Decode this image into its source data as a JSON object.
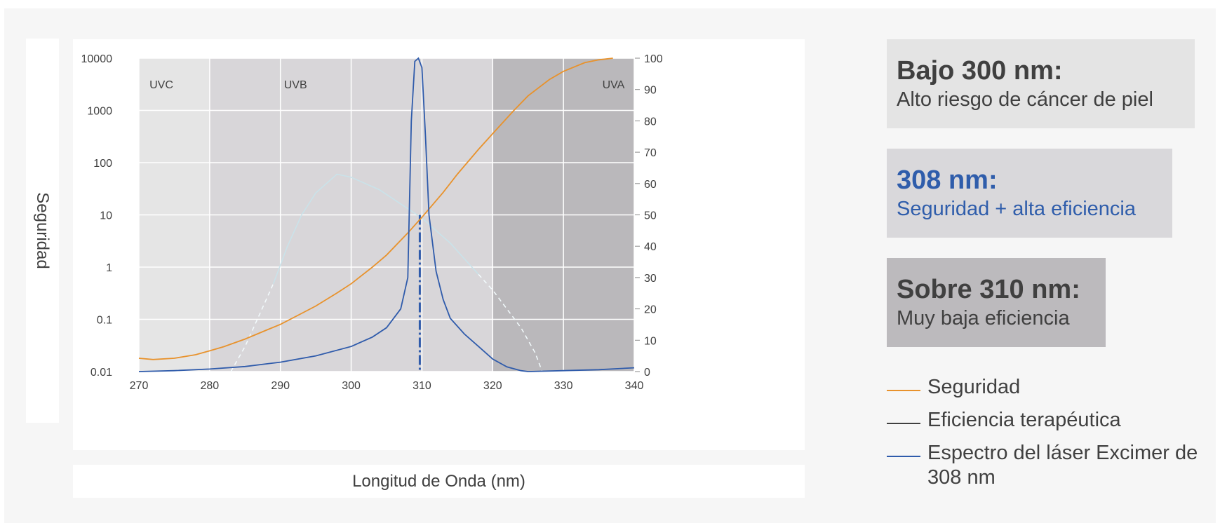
{
  "chart_data": {
    "type": "line",
    "title": "",
    "xlabel": "Longitud de Onda (nm)",
    "ylabel": "Seguridad",
    "xlim": [
      270,
      340
    ],
    "x_ticks": [
      270,
      280,
      290,
      300,
      310,
      320,
      330,
      340
    ],
    "y_left": {
      "scale": "log",
      "lim": [
        0.01,
        10000
      ],
      "ticks": [
        "0.01",
        "0.1",
        "1",
        "10",
        "100",
        "1000",
        "10000"
      ]
    },
    "y_right": {
      "scale": "linear",
      "lim": [
        0,
        100
      ],
      "ticks": [
        0,
        10,
        20,
        30,
        40,
        50,
        60,
        70,
        80,
        90,
        100
      ]
    },
    "grid": true,
    "regions": [
      {
        "label": "UVC",
        "from": 270,
        "to": 280,
        "color": "#e5e5e5"
      },
      {
        "label": "UVB",
        "from": 280,
        "to": 320,
        "color": "#d8d6d9"
      },
      {
        "label": "UVA",
        "from": 320,
        "to": 340,
        "color": "#bab8bb"
      }
    ],
    "series": [
      {
        "name": "Seguridad",
        "axis": "left",
        "color": "#e8922c",
        "x": [
          270,
          272,
          275,
          278,
          280,
          282,
          285,
          288,
          290,
          293,
          295,
          298,
          300,
          303,
          305,
          308,
          310,
          313,
          315,
          318,
          320,
          323,
          325,
          328,
          330,
          333,
          335,
          337
        ],
        "y": [
          0.018,
          0.017,
          0.018,
          0.021,
          0.025,
          0.03,
          0.042,
          0.062,
          0.08,
          0.13,
          0.18,
          0.32,
          0.48,
          1.0,
          1.7,
          4.5,
          9.0,
          27,
          60,
          180,
          360,
          1000,
          1900,
          3900,
          5600,
          8200,
          9300,
          10000
        ]
      },
      {
        "name": "Eficiencia terapéutica",
        "axis": "right",
        "color": "#c9e3ea",
        "x": [
          283,
          285,
          287,
          289,
          291,
          293,
          295,
          297,
          298,
          300,
          302,
          304,
          306,
          308,
          310,
          312,
          314,
          316,
          318,
          320,
          322,
          324,
          325,
          326,
          327
        ],
        "y": [
          0,
          8,
          18,
          28,
          40,
          50,
          57,
          61,
          63,
          62,
          60,
          58,
          55,
          52,
          49,
          45,
          41,
          36,
          31,
          26,
          20,
          14,
          10,
          6,
          0
        ]
      },
      {
        "name": "Espectro del láser Excimer de 308 nm",
        "axis": "right",
        "color": "#2f5bab",
        "x": [
          270,
          275,
          280,
          285,
          290,
          295,
          300,
          303,
          305,
          307,
          308,
          308.5,
          309,
          309.5,
          310,
          310.5,
          311,
          312,
          313,
          314,
          316,
          318,
          320,
          322,
          324,
          325,
          330,
          335,
          340
        ],
        "y": [
          0,
          0.3,
          0.8,
          1.6,
          3,
          5,
          8,
          11,
          14,
          20,
          30,
          80,
          99,
          100,
          97,
          75,
          50,
          32,
          23,
          17,
          12,
          8,
          4,
          1.5,
          0.3,
          0,
          0.3,
          0.6,
          1.2
        ]
      }
    ],
    "marker": {
      "x": 309.7,
      "y_top": 10,
      "y_bottom": 0.01,
      "style": "dash-dot",
      "color": "#2f5bab"
    }
  },
  "cards": [
    {
      "heading": "Bajo 300 nm:",
      "sub": "Alto riesgo de cáncer de piel"
    },
    {
      "heading": "308 nm:",
      "sub": "Seguridad + alta eficiencia"
    },
    {
      "heading": "Sobre 310 nm:",
      "sub": "Muy baja eficiencia"
    }
  ],
  "legend": [
    {
      "label": "Seguridad",
      "color": "#e8922c"
    },
    {
      "label": "Eficiencia terapéutica",
      "color": "#404040"
    },
    {
      "label": "Espectro del láser Excimer de 308 nm",
      "color": "#2f5bab"
    }
  ]
}
